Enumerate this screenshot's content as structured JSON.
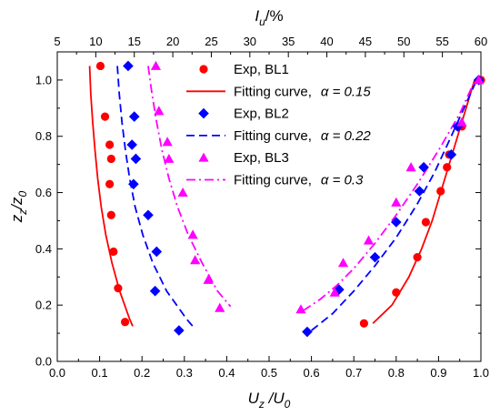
{
  "chart_data": {
    "type": "scatter",
    "xlabel_bottom": {
      "main": "U",
      "sub": "z",
      "sep": " /",
      "main2": "U",
      "sub2": "0"
    },
    "xlabel_top": {
      "main": "I",
      "sub": "u",
      "suffix": "/%"
    },
    "ylabel": {
      "main": "z",
      "sub": "z",
      "sep": "/",
      "main2": "z",
      "sub2": "0"
    },
    "x_bottom": {
      "lim": [
        0.0,
        1.0
      ],
      "ticks": [
        "0.0",
        "0.1",
        "0.2",
        "0.3",
        "0.4",
        "0.5",
        "0.6",
        "0.7",
        "0.8",
        "0.9",
        "1.0"
      ]
    },
    "x_top": {
      "lim": [
        5,
        60
      ],
      "ticks": [
        "5",
        "10",
        "15",
        "20",
        "25",
        "30",
        "35",
        "40",
        "45",
        "50",
        "55",
        "60"
      ]
    },
    "y": {
      "lim": [
        0.0,
        1.1
      ],
      "ticks": [
        "0.0",
        "0.2",
        "0.4",
        "0.6",
        "0.8",
        "1.0"
      ]
    },
    "grid": false,
    "legend_position": "top-center",
    "colors": {
      "BL1": "#ff0000",
      "BL2": "#0000ff",
      "BL3": "#ff00ff"
    },
    "legend": [
      {
        "key": "exp1",
        "marker": "circle",
        "color": "#ff0000",
        "label": "Exp, BL1",
        "alpha_text": ""
      },
      {
        "key": "fit1",
        "line": "solid",
        "color": "#ff0000",
        "label": "Fitting curve,",
        "alpha_text": "α = 0.15"
      },
      {
        "key": "exp2",
        "marker": "diamond",
        "color": "#0000ff",
        "label": "Exp, BL2",
        "alpha_text": ""
      },
      {
        "key": "fit2",
        "line": "dash",
        "color": "#0000ff",
        "label": "Fitting curve,",
        "alpha_text": "α = 0.22"
      },
      {
        "key": "exp3",
        "marker": "triangle",
        "color": "#ff00ff",
        "label": "Exp, BL3",
        "alpha_text": ""
      },
      {
        "key": "fit3",
        "line": "dashdot",
        "color": "#ff00ff",
        "label": "Fitting curve,",
        "alpha_text": "α = 0.3"
      }
    ],
    "series": [
      {
        "name": "Exp, BL1",
        "axis": "top",
        "marker": "circle",
        "color": "#ff0000",
        "points": [
          [
            10.6,
            1.05
          ],
          [
            11.2,
            0.87
          ],
          [
            11.8,
            0.77
          ],
          [
            12.0,
            0.72
          ],
          [
            11.8,
            0.63
          ],
          [
            12.0,
            0.52
          ],
          [
            12.3,
            0.39
          ],
          [
            12.9,
            0.26
          ],
          [
            13.8,
            0.14
          ]
        ]
      },
      {
        "name": "Exp, BL2",
        "axis": "top",
        "marker": "diamond",
        "color": "#0000ff",
        "points": [
          [
            14.2,
            1.05
          ],
          [
            15.0,
            0.87
          ],
          [
            14.7,
            0.77
          ],
          [
            15.2,
            0.72
          ],
          [
            14.9,
            0.63
          ],
          [
            16.8,
            0.52
          ],
          [
            17.9,
            0.39
          ],
          [
            17.7,
            0.25
          ],
          [
            20.8,
            0.11
          ]
        ]
      },
      {
        "name": "Exp, BL3",
        "axis": "top",
        "marker": "triangle",
        "color": "#ff00ff",
        "points": [
          [
            17.8,
            1.05
          ],
          [
            18.2,
            0.89
          ],
          [
            19.3,
            0.78
          ],
          [
            19.5,
            0.72
          ],
          [
            21.3,
            0.6
          ],
          [
            22.6,
            0.45
          ],
          [
            22.9,
            0.36
          ],
          [
            24.6,
            0.29
          ],
          [
            26.1,
            0.19
          ]
        ]
      },
      {
        "name": "Exp, BL1",
        "axis": "bottom",
        "marker": "circle",
        "color": "#ff0000",
        "points": [
          [
            0.724,
            0.135
          ],
          [
            0.8,
            0.245
          ],
          [
            0.85,
            0.37
          ],
          [
            0.87,
            0.495
          ],
          [
            0.905,
            0.605
          ],
          [
            0.92,
            0.69
          ],
          [
            0.925,
            0.735
          ],
          [
            0.955,
            0.835
          ],
          [
            1.0,
            1.0
          ]
        ]
      },
      {
        "name": "Exp, BL2",
        "axis": "bottom",
        "marker": "diamond",
        "color": "#0000ff",
        "points": [
          [
            0.59,
            0.105
          ],
          [
            0.665,
            0.255
          ],
          [
            0.75,
            0.37
          ],
          [
            0.8,
            0.495
          ],
          [
            0.855,
            0.605
          ],
          [
            0.865,
            0.69
          ],
          [
            0.93,
            0.735
          ],
          [
            0.945,
            0.835
          ],
          [
            0.995,
            1.0
          ]
        ]
      },
      {
        "name": "Exp, BL3",
        "axis": "bottom",
        "marker": "triangle",
        "color": "#ff00ff",
        "points": [
          [
            0.575,
            0.185
          ],
          [
            0.655,
            0.245
          ],
          [
            0.675,
            0.35
          ],
          [
            0.735,
            0.43
          ],
          [
            0.8,
            0.565
          ],
          [
            0.835,
            0.69
          ],
          [
            0.955,
            0.85
          ],
          [
            0.995,
            1.0
          ]
        ]
      },
      {
        "name": "Fitting curve, α = 0.15",
        "axis": "top",
        "line": "solid",
        "color": "#ff0000",
        "points": [
          [
            9.2,
            1.05
          ],
          [
            9.35,
            0.95
          ],
          [
            9.6,
            0.85
          ],
          [
            9.9,
            0.75
          ],
          [
            10.25,
            0.65
          ],
          [
            10.7,
            0.55
          ],
          [
            11.3,
            0.45
          ],
          [
            12.1,
            0.35
          ],
          [
            13.1,
            0.25
          ],
          [
            14.4,
            0.15
          ],
          [
            14.8,
            0.125
          ]
        ]
      },
      {
        "name": "Fitting curve, α = 0.22",
        "axis": "top",
        "line": "dash",
        "color": "#0000ff",
        "points": [
          [
            12.8,
            1.05
          ],
          [
            13.05,
            0.95
          ],
          [
            13.4,
            0.85
          ],
          [
            13.85,
            0.75
          ],
          [
            14.4,
            0.65
          ],
          [
            15.1,
            0.55
          ],
          [
            16.1,
            0.45
          ],
          [
            17.4,
            0.35
          ],
          [
            19.2,
            0.25
          ],
          [
            21.8,
            0.15
          ],
          [
            22.9,
            0.115
          ]
        ]
      },
      {
        "name": "Fitting curve, α = 0.3",
        "axis": "top",
        "line": "dashdot",
        "color": "#ff00ff",
        "points": [
          [
            16.8,
            1.05
          ],
          [
            17.3,
            0.95
          ],
          [
            17.9,
            0.85
          ],
          [
            18.6,
            0.75
          ],
          [
            19.5,
            0.65
          ],
          [
            20.6,
            0.55
          ],
          [
            22.0,
            0.45
          ],
          [
            23.8,
            0.35
          ],
          [
            25.8,
            0.25
          ],
          [
            27.5,
            0.195
          ]
        ]
      },
      {
        "name": "Fitting curve, α = 0.15",
        "axis": "bottom",
        "line": "solid",
        "color": "#ff0000",
        "points": [
          [
            0.745,
            0.135
          ],
          [
            0.79,
            0.2
          ],
          [
            0.83,
            0.3
          ],
          [
            0.86,
            0.4
          ],
          [
            0.885,
            0.5
          ],
          [
            0.905,
            0.6
          ],
          [
            0.925,
            0.7
          ],
          [
            0.945,
            0.8
          ],
          [
            0.965,
            0.9
          ],
          [
            0.985,
            1.0
          ]
        ]
      },
      {
        "name": "Fitting curve, α = 0.22",
        "axis": "bottom",
        "line": "dash",
        "color": "#0000ff",
        "points": [
          [
            0.6,
            0.11
          ],
          [
            0.65,
            0.17
          ],
          [
            0.7,
            0.25
          ],
          [
            0.75,
            0.34
          ],
          [
            0.8,
            0.44
          ],
          [
            0.85,
            0.56
          ],
          [
            0.89,
            0.67
          ],
          [
            0.93,
            0.8
          ],
          [
            0.96,
            0.9
          ],
          [
            0.99,
            1.0
          ]
        ]
      },
      {
        "name": "Fitting curve, α = 0.3",
        "axis": "bottom",
        "line": "dashdot",
        "color": "#ff00ff",
        "points": [
          [
            0.58,
            0.18
          ],
          [
            0.62,
            0.22
          ],
          [
            0.66,
            0.27
          ],
          [
            0.7,
            0.33
          ],
          [
            0.75,
            0.42
          ],
          [
            0.8,
            0.52
          ],
          [
            0.85,
            0.63
          ],
          [
            0.9,
            0.75
          ],
          [
            0.95,
            0.88
          ],
          [
            0.98,
            0.98
          ],
          [
            0.99,
            1.0
          ]
        ]
      }
    ]
  }
}
